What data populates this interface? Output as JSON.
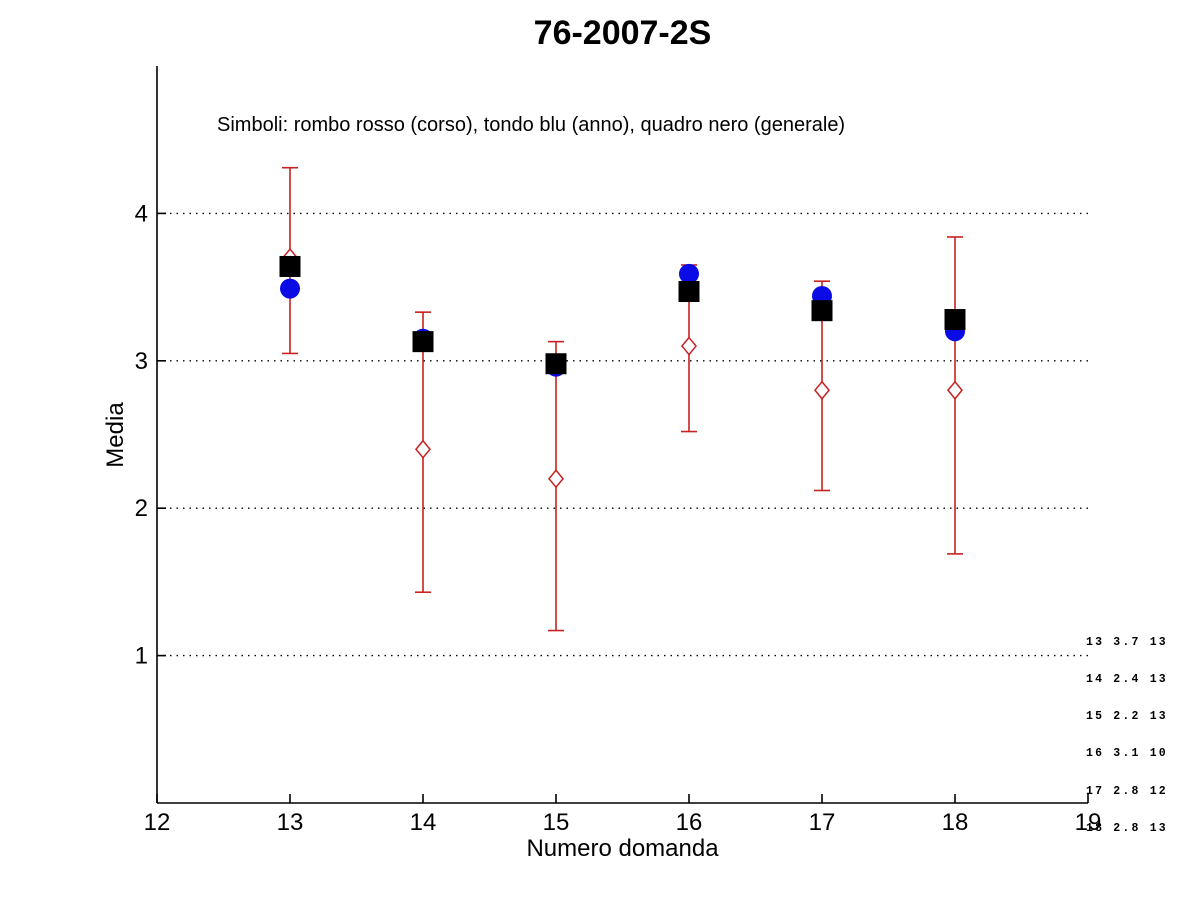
{
  "figure": {
    "title": "76-2007-2S",
    "subtitle": "Simboli: rombo rosso (corso), tondo blu (anno), quadro nero (generale)"
  },
  "chart_data": {
    "type": "scatter",
    "title": "76-2007-2S",
    "subtitle": "Simboli: rombo rosso (corso), tondo blu (anno), quadro nero (generale)",
    "xlabel": "Numero domanda",
    "ylabel": "Media",
    "xlim": [
      12,
      19
    ],
    "ylim": [
      0,
      5
    ],
    "xticks": [
      12,
      13,
      14,
      15,
      16,
      17,
      18,
      19
    ],
    "yticks": [
      1,
      2,
      3,
      4
    ],
    "grid": "horizontal dotted black lines at each y tick",
    "legend_position": "none (described in subtitle text)",
    "x": [
      13,
      14,
      15,
      16,
      17,
      18
    ],
    "series": [
      {
        "name": "corso",
        "marker": "open-diamond",
        "color": "#C92121",
        "values": [
          3.7,
          2.4,
          2.2,
          3.1,
          2.8,
          2.8
        ],
        "err_low": [
          3.05,
          1.43,
          1.17,
          2.52,
          2.12,
          1.69
        ],
        "err_high": [
          4.31,
          3.33,
          3.13,
          3.65,
          3.54,
          3.84
        ]
      },
      {
        "name": "anno",
        "marker": "filled-circle",
        "color": "#0B0BE6",
        "values": [
          3.49,
          3.15,
          2.96,
          3.59,
          3.44,
          3.2
        ]
      },
      {
        "name": "generale",
        "marker": "filled-square",
        "color": "#000000",
        "values": [
          3.64,
          3.13,
          2.98,
          3.47,
          3.34,
          3.28
        ]
      }
    ],
    "annotation_rows": [
      "13 3.7 13",
      "14 2.4 13",
      "15 2.2 13",
      "16 3.1 10",
      "17 2.8 12",
      "18 2.8 13"
    ]
  }
}
